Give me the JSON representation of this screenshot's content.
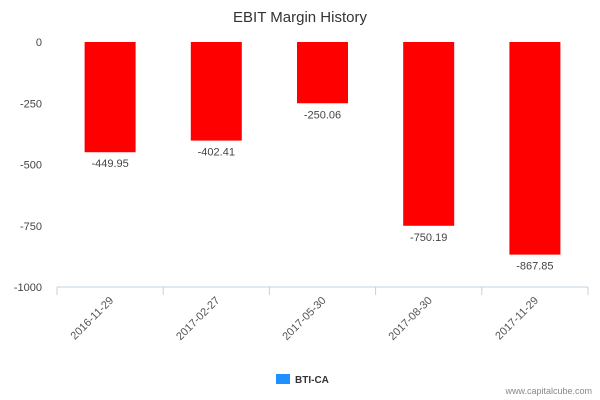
{
  "chart_data": {
    "type": "bar",
    "title": "EBIT Margin History",
    "categories": [
      "2016-11-29",
      "2017-02-27",
      "2017-05-30",
      "2017-08-30",
      "2017-11-29"
    ],
    "series": [
      {
        "name": "BTI-CA",
        "values": [
          -449.95,
          -402.41,
          -250.06,
          -750.19,
          -867.85
        ],
        "color": "#ff0000"
      }
    ],
    "data_labels": [
      "-449.95",
      "-402.41",
      "-250.06",
      "-750.19",
      "-867.85"
    ],
    "yticks": [
      0,
      -250,
      -500,
      -750,
      -1000
    ],
    "ytick_labels": [
      "0",
      "-250",
      "-500",
      "-750",
      "-1000"
    ],
    "ylim": [
      -1000,
      0
    ],
    "xlabel": "",
    "ylabel": "",
    "grid": false,
    "legend_position": "bottom-center",
    "legend_color": "#1e90ff"
  },
  "credit": "www.capitalcube.com"
}
